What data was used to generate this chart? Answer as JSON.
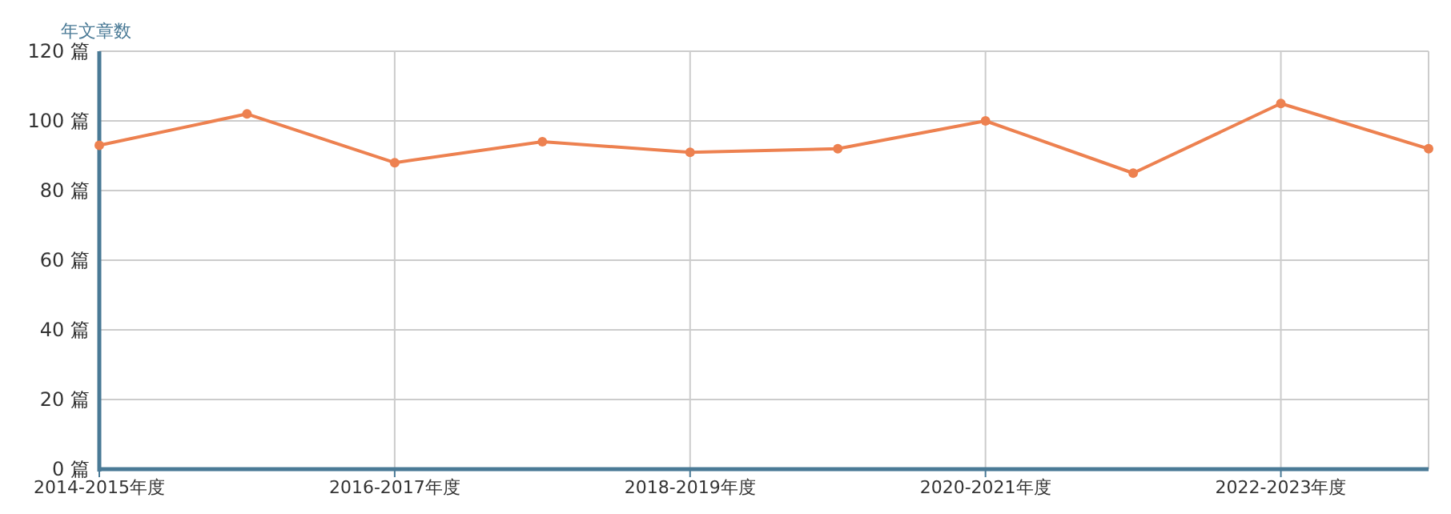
{
  "chart_data": {
    "type": "line",
    "ylabel": "年文章数",
    "categories": [
      "2014-2015年度",
      null,
      "2016-2017年度",
      null,
      "2018-2019年度",
      null,
      "2020-2021年度",
      null,
      "2022-2023年度",
      null
    ],
    "series": [
      {
        "color": "#ed8150",
        "values": [
          93,
          102,
          88,
          94,
          91,
          92,
          100,
          85,
          105,
          92
        ]
      }
    ],
    "ylim": [
      0,
      120
    ],
    "yticks": [
      {
        "value": 0,
        "label": "0 篇"
      },
      {
        "value": 20,
        "label": "20 篇"
      },
      {
        "value": 40,
        "label": "40 篇"
      },
      {
        "value": 60,
        "label": "60 篇"
      },
      {
        "value": 80,
        "label": "80 篇"
      },
      {
        "value": 100,
        "label": "100 篇"
      },
      {
        "value": 120,
        "label": "120 篇"
      }
    ],
    "grid": true,
    "marker": "circle",
    "line_style": "solid"
  }
}
